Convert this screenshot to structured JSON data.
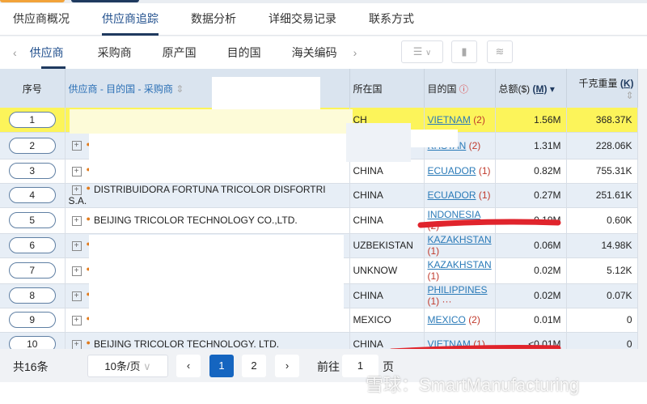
{
  "tabs": [
    "供应商概况",
    "供应商追踪",
    "数据分析",
    "详细交易记录",
    "联系方式"
  ],
  "active_tab": 1,
  "subtabs": [
    "供应商",
    "采购商",
    "原产国",
    "目的国",
    "海关编码"
  ],
  "active_subtab": 0,
  "headers": {
    "seq": "序号",
    "supplier": "供应商 - 目的国 - 采购商",
    "country": "所在国",
    "dest": "目的国",
    "amount": "总额($)",
    "amount_unit": "(M)",
    "weight": "千克重量",
    "weight_unit": "(K)"
  },
  "rows": [
    {
      "seq": "1",
      "supplier": "",
      "country": "CH",
      "dest": "VIETNAM",
      "dest_count": "(2)",
      "amount": "1.56M",
      "weight": "368.37K",
      "style": "yellow"
    },
    {
      "seq": "2",
      "supplier": "",
      "country": "",
      "dest": "KHSTAN",
      "dest_count": "(2)",
      "amount": "1.31M",
      "weight": "228.06K",
      "style": "blue"
    },
    {
      "seq": "3",
      "supplier": "",
      "country": "CHINA",
      "dest": "ECUADOR",
      "dest_count": "(1)",
      "amount": "0.82M",
      "weight": "755.31K",
      "style": "white"
    },
    {
      "seq": "4",
      "supplier": "DISTRIBUIDORA FORTUNA TRICOLOR DISFORTRI S.A.",
      "country": "CHINA",
      "dest": "ECUADOR",
      "dest_count": "(1)",
      "amount": "0.27M",
      "weight": "251.61K",
      "style": "blue"
    },
    {
      "seq": "5",
      "supplier": "BEIJING TRICOLOR TECHNOLOGY CO.,LTD.",
      "country": "CHINA",
      "dest": "INDONESIA",
      "dest_count": "(2)",
      "amount": "0.19M",
      "weight": "0.60K",
      "style": "white"
    },
    {
      "seq": "6",
      "supplier": "",
      "country": "UZBEKISTAN",
      "dest": "KAZAKHSTAN",
      "dest_count": "(1)",
      "amount": "0.06M",
      "weight": "14.98K",
      "style": "blue"
    },
    {
      "seq": "7",
      "supplier": "",
      "country": "UNKNOW",
      "dest": "KAZAKHSTAN",
      "dest_count": "(1)",
      "amount": "0.02M",
      "weight": "5.12K",
      "style": "white"
    },
    {
      "seq": "8",
      "supplier": "",
      "country": "CHINA",
      "dest": "PHILIPPINES",
      "dest_count": "(1) ···",
      "amount": "0.02M",
      "weight": "0.07K",
      "style": "blue"
    },
    {
      "seq": "9",
      "supplier": "",
      "country": "MEXICO",
      "dest": "MEXICO",
      "dest_count": "(2)",
      "amount": "0.01M",
      "weight": "0",
      "style": "white"
    },
    {
      "seq": "10",
      "supplier": "BEIJING TRICOLOR TECHNOLOGY. LTD.",
      "country": "CHINA",
      "dest": "VIETNAM",
      "dest_count": "(1)",
      "amount": "<0.01M",
      "weight": "0",
      "style": "blue"
    }
  ],
  "pager": {
    "total": "共16条",
    "page_size": "10条/页",
    "pages": [
      "1",
      "2"
    ],
    "current": "1",
    "goto_label": "前往",
    "goto_value": "1",
    "page_suffix": "页"
  },
  "watermark": "雪球：SmartManufacturing",
  "colors": {
    "accent": "#1565c0",
    "highlight": "#fcf45a",
    "marker": "#e0242c"
  }
}
